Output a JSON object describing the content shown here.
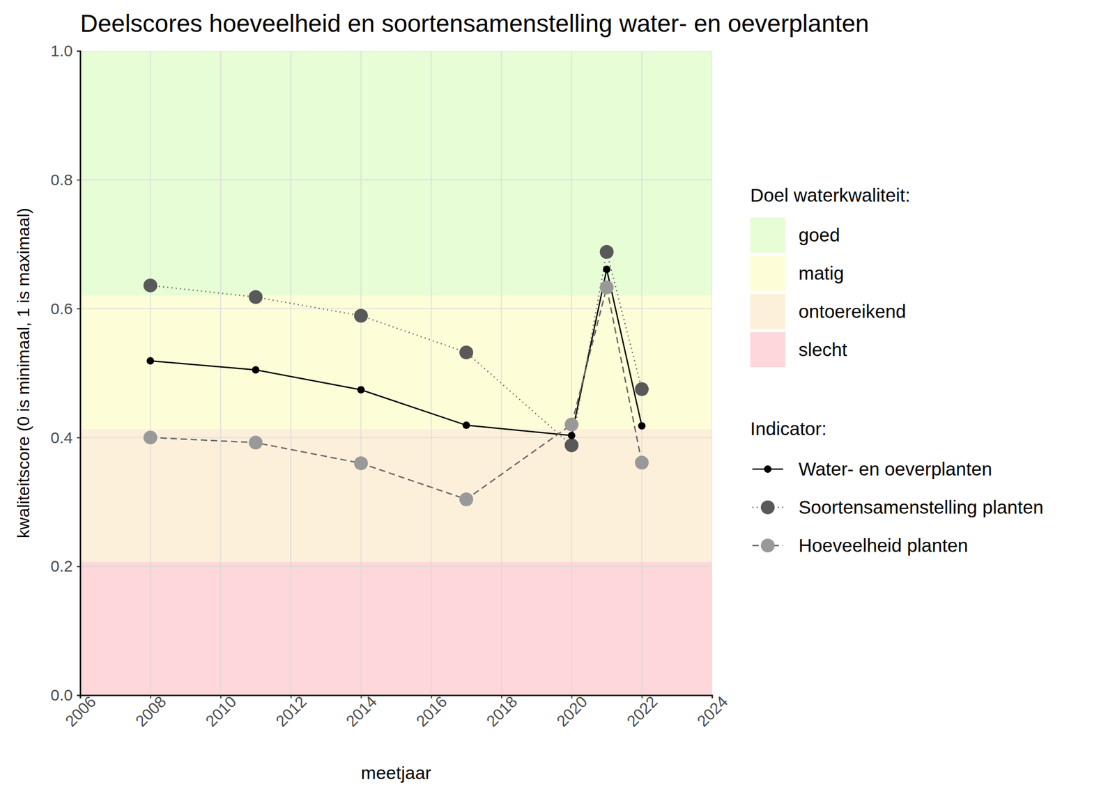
{
  "chart_data": {
    "type": "line",
    "title": "Deelscores hoeveelheid en soortensamenstelling water- en oeverplanten",
    "x_label": "meetjaar",
    "y_label": "kwaliteitscore (0 is minimaal, 1 is maximaal)",
    "x": [
      2008,
      2011,
      2014,
      2017,
      2020,
      2021,
      2022
    ],
    "xlim": [
      2006,
      2024
    ],
    "xticks": [
      2006,
      2008,
      2010,
      2012,
      2014,
      2016,
      2018,
      2020,
      2022,
      2024
    ],
    "ylim": [
      0,
      1
    ],
    "yticks": [
      {
        "value": 0,
        "label": "0.0"
      },
      0.2,
      0.4,
      0.6,
      0.8,
      {
        "value": 1,
        "label": "1.0"
      }
    ],
    "grid": true,
    "legend": "right",
    "bands_title": "Doel waterkwaliteit:",
    "bands": [
      {
        "name": "goed",
        "color": "#e6fdd6",
        "from": 0.62,
        "to": 1
      },
      {
        "name": "matig",
        "color": "#fdfed8",
        "from": 0.413,
        "to": 0.62
      },
      {
        "name": "ontoereikend",
        "color": "#fdf0da",
        "from": 0.207,
        "to": 0.413
      },
      {
        "name": "slecht",
        "color": "#fdd7da",
        "from": 0,
        "to": 0.207
      }
    ],
    "legend_title": "Indicator:",
    "series": [
      {
        "name": "Water- en oeverplanten",
        "color": "#000000",
        "marker": "point",
        "line_style": "solid",
        "values": [
          0.519,
          0.505,
          0.474,
          0.419,
          0.403,
          0.661,
          0.418
        ]
      },
      {
        "name": "Soortensamenstelling planten",
        "color": "#595959",
        "marker": "circle",
        "line_style": "dotted",
        "values": [
          0.636,
          0.618,
          0.589,
          0.532,
          0.388,
          0.688,
          0.475
        ]
      },
      {
        "name": "Hoeveelheid planten",
        "color": "#999999",
        "marker": "circle",
        "line_style": "dashed",
        "values": [
          0.4,
          0.392,
          0.36,
          0.304,
          0.42,
          0.633,
          0.361
        ]
      }
    ]
  }
}
